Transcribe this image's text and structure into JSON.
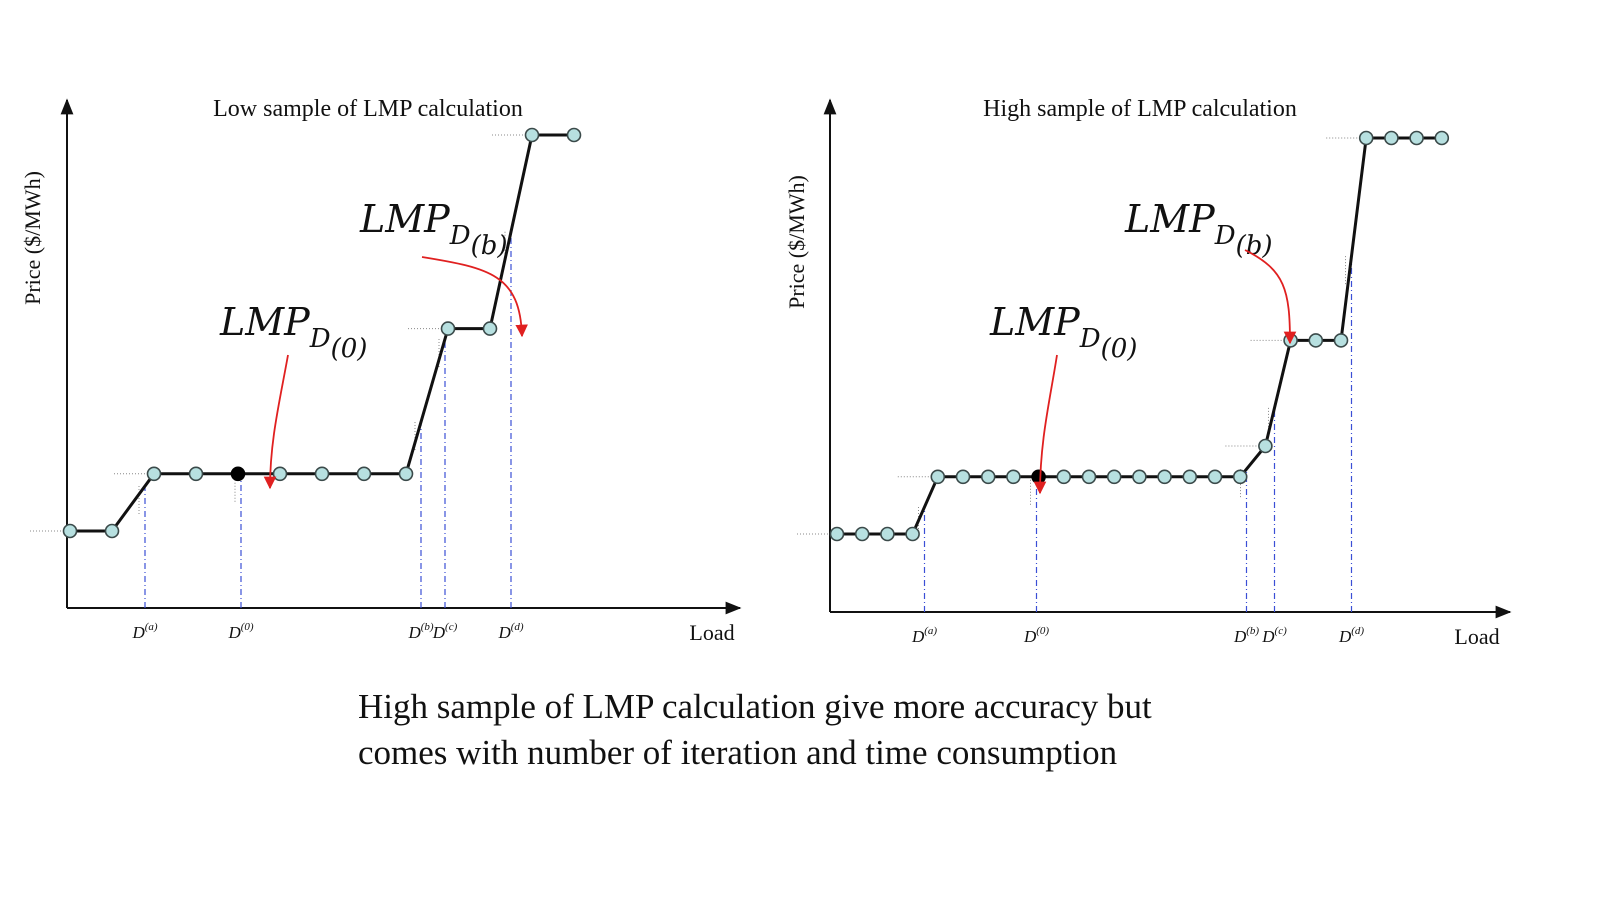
{
  "colors": {
    "line": "#111111",
    "marker_fill": "#b7e0e0",
    "marker_stroke": "#3b4a4a",
    "selected_marker": "#000000",
    "arrow": "#e02020",
    "guide_blue": "#3b4fd6",
    "guide_gray": "#888888"
  },
  "chart_data": [
    {
      "type": "line",
      "title": "Low sample of LMP calculation",
      "xlabel": "Load",
      "ylabel": "Price ($/MWh)",
      "grid": false,
      "xlim": [
        0,
        100
      ],
      "ylim": [
        0,
        100
      ],
      "x_ticks": [
        {
          "base": "D",
          "sup": "(a)",
          "x": 14.5
        },
        {
          "base": "D",
          "sup": "(0)",
          "x": 30.5
        },
        {
          "base": "D",
          "sup": "(b)",
          "x": 60.5
        },
        {
          "base": "D",
          "sup": "(c)",
          "x": 64.5
        },
        {
          "base": "D",
          "sup": "(d)",
          "x": 75.5
        }
      ],
      "series": [
        {
          "name": "LMP",
          "x": [
            2,
            9,
            16,
            23,
            30,
            37,
            44,
            51,
            58,
            65,
            72,
            79,
            86
          ],
          "y": [
            10,
            10,
            23,
            23,
            23,
            23,
            23,
            23,
            23,
            56,
            56,
            100,
            100
          ]
        }
      ],
      "selected_point_index": 4,
      "annotations": [
        {
          "main": "LMP",
          "sub1": "D",
          "sub2": "(0)",
          "target_index": 4
        },
        {
          "main": "LMP",
          "sub1": "D",
          "sub2": "(b)",
          "target_index": 9
        }
      ]
    },
    {
      "type": "line",
      "title": "High sample of LMP calculation",
      "xlabel": "Load",
      "ylabel": "Price ($/MWh)",
      "grid": false,
      "xlim": [
        0,
        100
      ],
      "ylim": [
        0,
        100
      ],
      "x_ticks": [
        {
          "base": "D",
          "sup": "(a)",
          "x": 14.5
        },
        {
          "base": "D",
          "sup": "(0)",
          "x": 30.5
        },
        {
          "base": "D",
          "sup": "(b)",
          "x": 60.5
        },
        {
          "base": "D",
          "sup": "(c)",
          "x": 64.5
        },
        {
          "base": "D",
          "sup": "(d)",
          "x": 75.5
        }
      ],
      "series": [
        {
          "name": "LMP",
          "x": [
            2,
            5.6,
            9.2,
            12.8,
            16.4,
            20,
            23.6,
            27.2,
            30.8,
            34.4,
            38,
            41.6,
            45.2,
            48.8,
            52.4,
            56,
            59.6,
            63.2,
            66.8,
            70.4,
            74,
            77.6,
            81.2,
            84.8,
            88.4
          ],
          "y": [
            10,
            10,
            10,
            10,
            23,
            23,
            23,
            23,
            23,
            23,
            23,
            23,
            23,
            23,
            23,
            23,
            23,
            30,
            54,
            54,
            54,
            100,
            100,
            100,
            100
          ]
        }
      ],
      "selected_point_index": 8,
      "annotations": [
        {
          "main": "LMP",
          "sub1": "D",
          "sub2": "(0)",
          "target_index": 8
        },
        {
          "main": "LMP",
          "sub1": "D",
          "sub2": "(b)",
          "target_index": 18
        }
      ]
    }
  ],
  "caption": {
    "line1": "High sample of LMP calculation give more accuracy but",
    "line2": "comes with number of iteration and time consumption"
  }
}
